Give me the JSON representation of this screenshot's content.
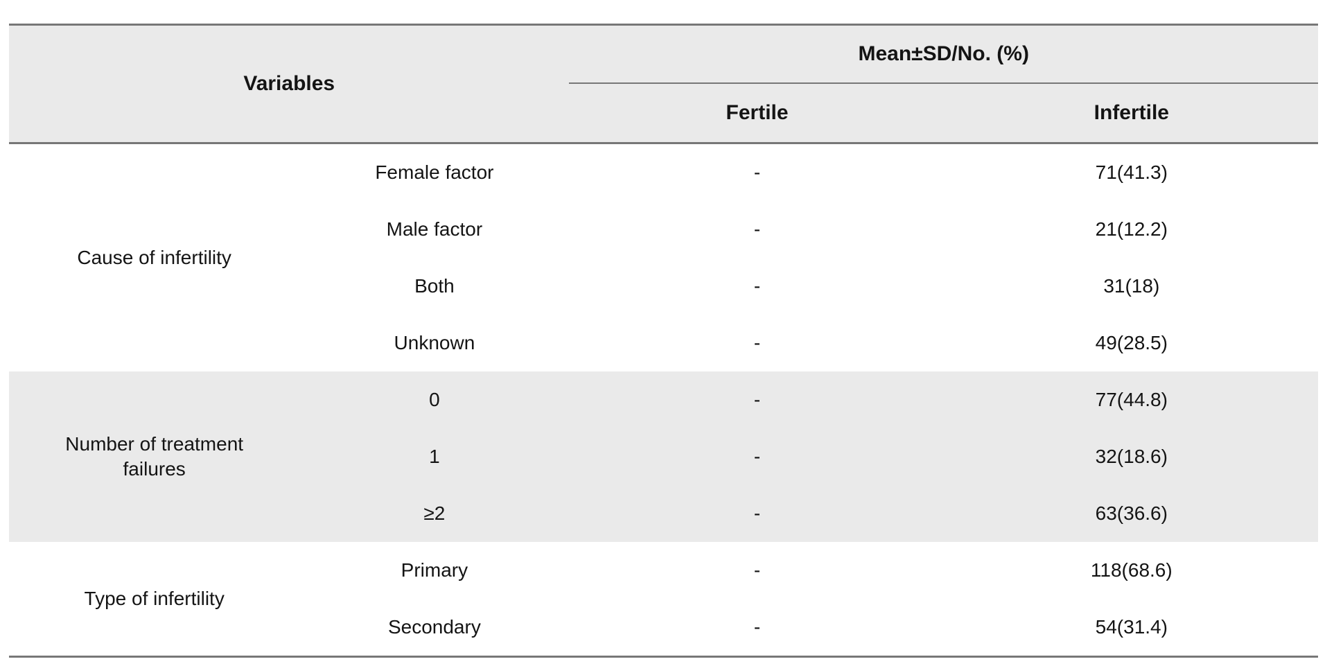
{
  "table": {
    "header": {
      "variables_label": "Variables",
      "group_header": "Mean±SD/No. (%)",
      "col_fertile": "Fertile",
      "col_infertile": "Infertile"
    },
    "sections": [
      {
        "group": "Cause of infertility",
        "shaded": false,
        "rows": [
          {
            "item": "Female factor",
            "fertile": "-",
            "infertile": "71(41.3)"
          },
          {
            "item": "Male factor",
            "fertile": "-",
            "infertile": "21(12.2)"
          },
          {
            "item": "Both",
            "fertile": "-",
            "infertile": "31(18)"
          },
          {
            "item": "Unknown",
            "fertile": "-",
            "infertile": "49(28.5)"
          }
        ]
      },
      {
        "group": "Number of treatment failures",
        "shaded": true,
        "rows": [
          {
            "item": "0",
            "fertile": "-",
            "infertile": "77(44.8)"
          },
          {
            "item": "1",
            "fertile": "-",
            "infertile": "32(18.6)"
          },
          {
            "item": "≥2",
            "fertile": "-",
            "infertile": "63(36.6)"
          }
        ]
      },
      {
        "group": "Type of infertility",
        "shaded": false,
        "rows": [
          {
            "item": "Primary",
            "fertile": "-",
            "infertile": "118(68.6)"
          },
          {
            "item": "Secondary",
            "fertile": "-",
            "infertile": "54(31.4)"
          }
        ]
      }
    ],
    "colors": {
      "header_bg": "#eaeaea",
      "shaded_row_bg": "#eaeaea",
      "border": "#777777",
      "text": "#141414"
    }
  }
}
